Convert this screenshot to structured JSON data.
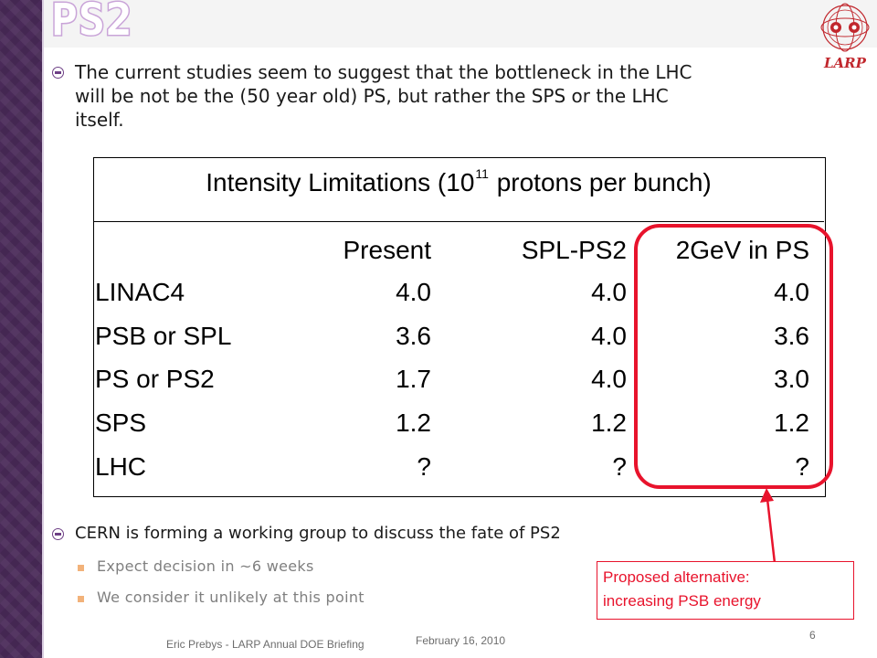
{
  "slide": {
    "title": "PS2",
    "logo_text": "LARP",
    "bullets": [
      {
        "text_lines": [
          "The current studies seem to suggest that the bottleneck in the LHC",
          "will be not be the (50 year old) PS, but rather the SPS or the LHC",
          "itself."
        ]
      },
      {
        "text": "CERN is forming a working group to discuss the fate of PS2"
      }
    ],
    "sub_bullets": [
      "Expect decision in ~6 weeks",
      "We consider it unlikely at this point"
    ]
  },
  "table": {
    "title_before": "Intensity Limitations (10",
    "title_sup": "11",
    "title_after": " protons per bunch)",
    "headers": [
      "Present",
      "SPL-PS2",
      "2GeV in PS"
    ],
    "rows": [
      {
        "label": "LINAC4",
        "values": [
          "4.0",
          "4.0",
          "4.0"
        ]
      },
      {
        "label": "PSB or SPL",
        "values": [
          "3.6",
          "4.0",
          "3.6"
        ]
      },
      {
        "label": "PS or PS2",
        "values": [
          "1.7",
          "4.0",
          "3.0"
        ]
      },
      {
        "label": "SPS",
        "values": [
          "1.2",
          "1.2",
          "1.2"
        ]
      },
      {
        "label": "LHC",
        "values": [
          "?",
          "?",
          "?"
        ]
      }
    ]
  },
  "callout": {
    "lines": [
      "Proposed alternative:",
      "increasing PSB energy"
    ]
  },
  "footer": {
    "author": "Eric Prebys - LARP Annual DOE Briefing",
    "date": "February 16, 2010",
    "page": "6"
  },
  "colors": {
    "accent": "#6d3f85",
    "highlight": "#e8132c",
    "band": "#4a2a59"
  }
}
